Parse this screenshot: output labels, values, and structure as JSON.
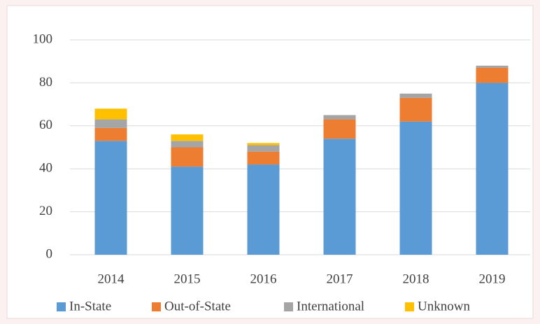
{
  "chart_data": {
    "type": "stacked-bar",
    "categories": [
      "2014",
      "2015",
      "2016",
      "2017",
      "2018",
      "2019"
    ],
    "series": [
      {
        "name": "In-State",
        "color": "#5b9bd5",
        "values": [
          53,
          41,
          42,
          54,
          62,
          80
        ]
      },
      {
        "name": "Out-of-State",
        "color": "#ed7d31",
        "values": [
          6,
          9,
          6,
          9,
          11,
          7
        ]
      },
      {
        "name": "International",
        "color": "#a5a5a5",
        "values": [
          4,
          3,
          3,
          2,
          2,
          1
        ]
      },
      {
        "name": "Unknown",
        "color": "#ffc000",
        "values": [
          5,
          3,
          1,
          0,
          0,
          0
        ]
      }
    ],
    "ylim": [
      0,
      100
    ],
    "yticks": [
      0,
      20,
      40,
      60,
      80,
      100
    ],
    "grid": true,
    "legend": "bottom"
  }
}
